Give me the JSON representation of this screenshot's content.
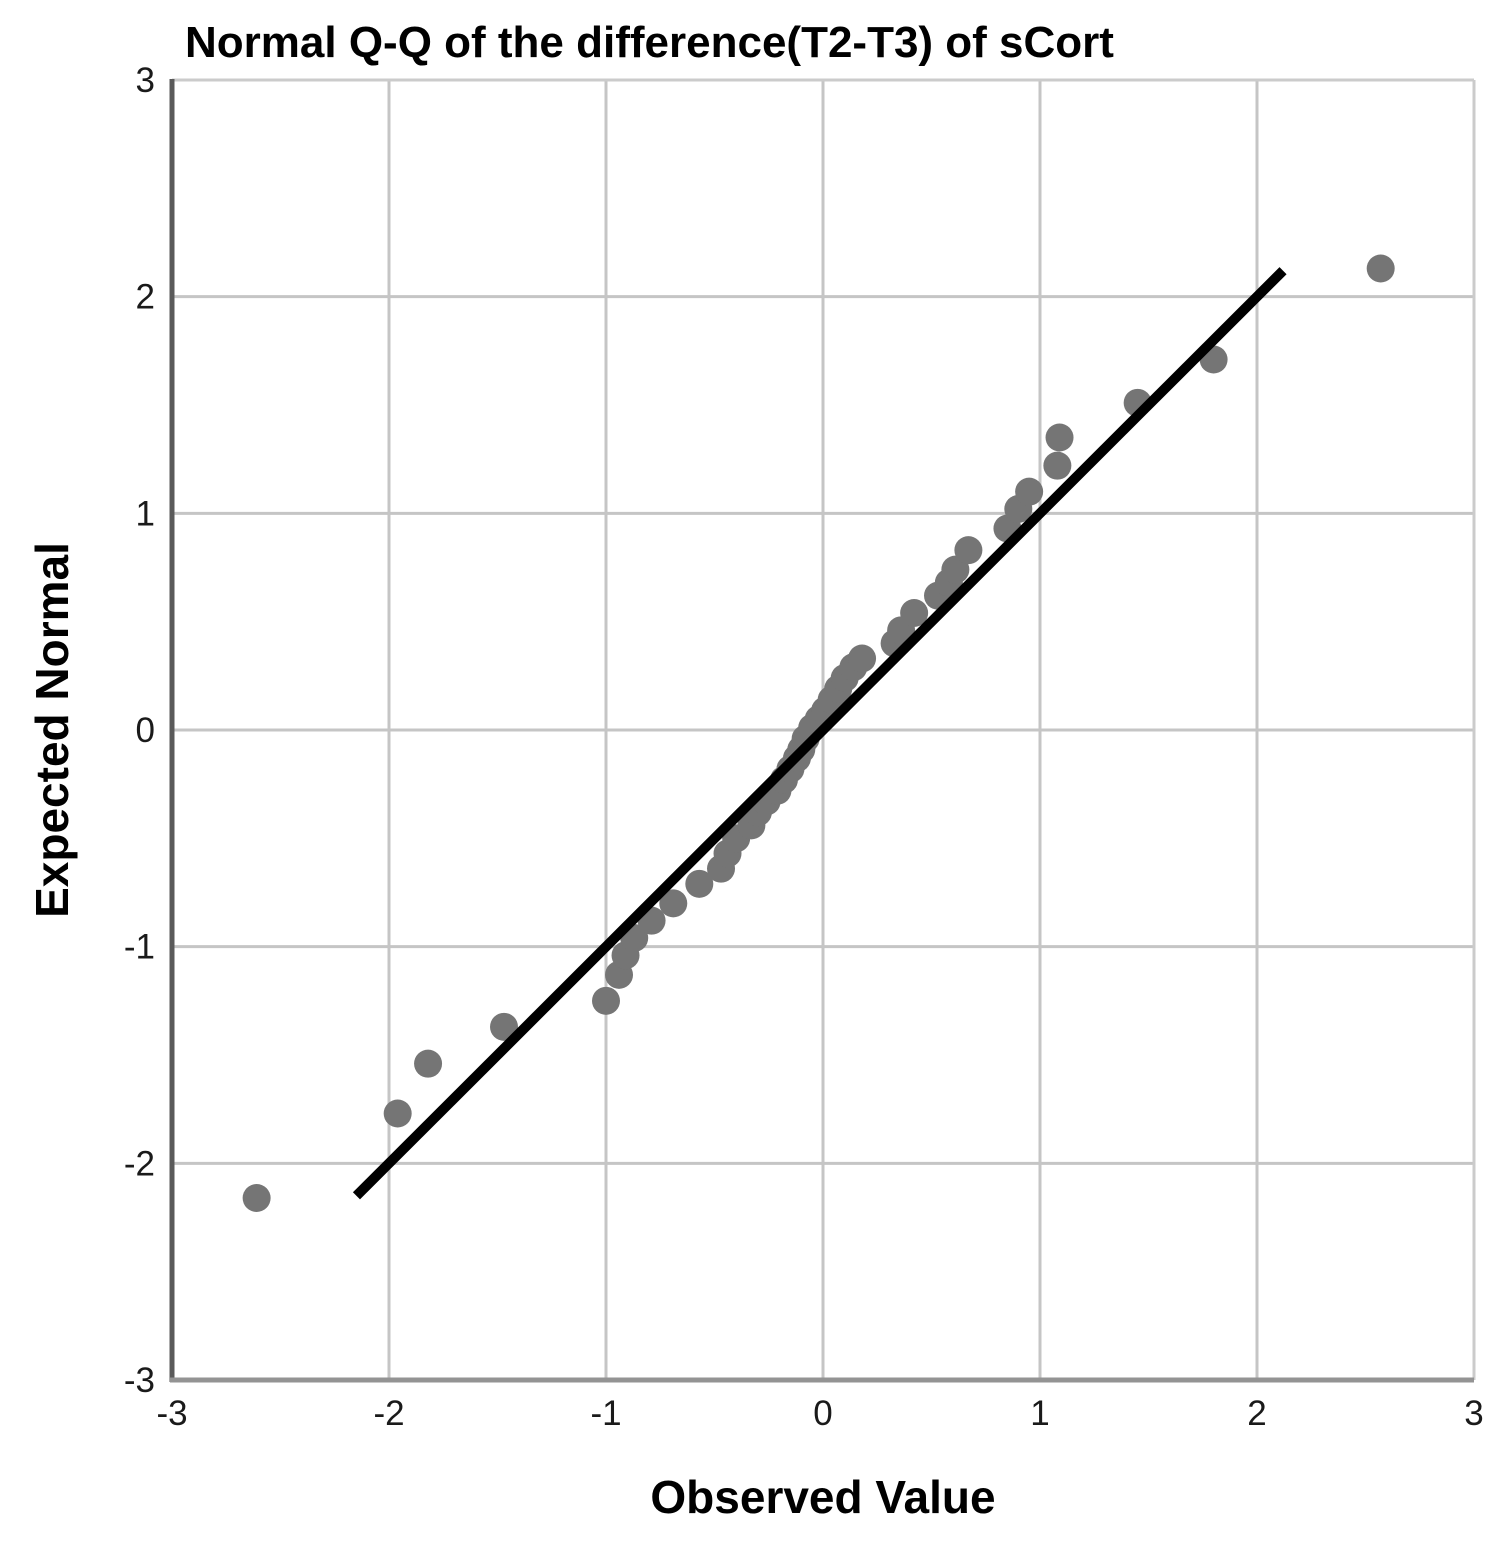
{
  "chart_data": {
    "type": "scatter",
    "subtype": "normal-qq-plot",
    "title": "Normal Q-Q of the difference(T2-T3) of sCort",
    "xlabel": "Observed Value",
    "ylabel": "Expected Normal",
    "xlim": [
      -3,
      3
    ],
    "ylim": [
      -3,
      3
    ],
    "xticks": [
      -3,
      -2,
      -1,
      0,
      1,
      2,
      3
    ],
    "yticks": [
      -3,
      -2,
      -1,
      0,
      1,
      2,
      3
    ],
    "grid": true,
    "legend": "none",
    "points": [
      [
        -2.61,
        -2.16
      ],
      [
        -1.96,
        -1.77
      ],
      [
        -1.82,
        -1.54
      ],
      [
        -1.47,
        -1.37
      ],
      [
        -1.0,
        -1.25
      ],
      [
        -0.94,
        -1.13
      ],
      [
        -0.91,
        -1.04
      ],
      [
        -0.87,
        -0.96
      ],
      [
        -0.79,
        -0.88
      ],
      [
        -0.69,
        -0.8
      ],
      [
        -0.57,
        -0.71
      ],
      [
        -0.47,
        -0.64
      ],
      [
        -0.44,
        -0.57
      ],
      [
        -0.4,
        -0.5
      ],
      [
        -0.33,
        -0.44
      ],
      [
        -0.3,
        -0.38
      ],
      [
        -0.26,
        -0.33
      ],
      [
        -0.21,
        -0.28
      ],
      [
        -0.18,
        -0.23
      ],
      [
        -0.15,
        -0.18
      ],
      [
        -0.12,
        -0.13
      ],
      [
        -0.1,
        -0.09
      ],
      [
        -0.08,
        -0.04
      ],
      [
        -0.05,
        0.01
      ],
      [
        -0.02,
        0.05
      ],
      [
        0.01,
        0.09
      ],
      [
        0.04,
        0.14
      ],
      [
        0.07,
        0.19
      ],
      [
        0.1,
        0.24
      ],
      [
        0.14,
        0.29
      ],
      [
        0.18,
        0.33
      ],
      [
        0.33,
        0.4
      ],
      [
        0.36,
        0.46
      ],
      [
        0.42,
        0.54
      ],
      [
        0.53,
        0.62
      ],
      [
        0.58,
        0.68
      ],
      [
        0.61,
        0.74
      ],
      [
        0.67,
        0.83
      ],
      [
        0.85,
        0.93
      ],
      [
        0.9,
        1.02
      ],
      [
        0.95,
        1.1
      ],
      [
        1.08,
        1.22
      ],
      [
        1.09,
        1.35
      ],
      [
        1.45,
        1.51
      ],
      [
        1.8,
        1.71
      ],
      [
        2.57,
        2.13
      ]
    ],
    "reference_line": {
      "x1": -2.15,
      "y1": -2.15,
      "x2": 2.12,
      "y2": 2.12
    },
    "colors": {
      "point": "#757575",
      "reference_line": "#000000",
      "gridline": "#c5c5c5",
      "frame": "#cbcbcb",
      "axis_left": "#5a5a5a",
      "axis_bottom": "#939393",
      "text": "#000000",
      "background": "#ffffff"
    }
  }
}
